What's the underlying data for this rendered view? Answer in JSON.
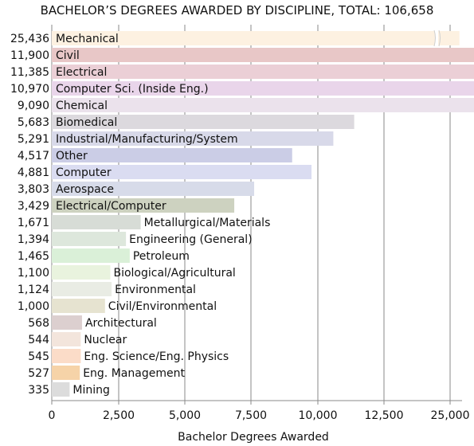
{
  "chart_data": {
    "type": "bar",
    "orientation": "horizontal",
    "title": "BACHELOR’S DEGREES AWARDED BY DISCIPLINE, TOTAL: 106,658",
    "xlabel": "Bachelor Degrees Awarded",
    "xlim": [
      0,
      25000
    ],
    "axis_break": true,
    "xticks": [
      "0",
      "2,500",
      "5,000",
      "7,500",
      "10,000",
      "12,500",
      "25,000"
    ],
    "grid": true,
    "bars": [
      {
        "label": "Mechanical",
        "value": 25436,
        "value_label": "25,436",
        "color": "#fdf1e1"
      },
      {
        "label": "Civil",
        "value": 11900,
        "value_label": "11,900",
        "color": "#e8c7c7"
      },
      {
        "label": "Electrical",
        "value": 11385,
        "value_label": "11,385",
        "color": "#ebcfd6"
      },
      {
        "label": "Computer Sci. (Inside Eng.)",
        "value": 10970,
        "value_label": "10,970",
        "color": "#e9d5ea"
      },
      {
        "label": "Chemical",
        "value": 9090,
        "value_label": "9,090",
        "color": "#ebe2ec"
      },
      {
        "label": "Biomedical",
        "value": 5683,
        "value_label": "5,683",
        "color": "#dcd9de"
      },
      {
        "label": "Industrial/Manufacturing/System",
        "value": 5291,
        "value_label": "5,291",
        "color": "#d8d9e9"
      },
      {
        "label": "Other",
        "value": 4517,
        "value_label": "4,517",
        "color": "#cbcde6"
      },
      {
        "label": "Computer",
        "value": 4881,
        "value_label": "4,881",
        "color": "#dadcf1"
      },
      {
        "label": "Aerospace",
        "value": 3803,
        "value_label": "3,803",
        "color": "#d7dbe9"
      },
      {
        "label": "Electrical/Computer",
        "value": 3429,
        "value_label": "3,429",
        "color": "#cdd2c0"
      },
      {
        "label": "Metallurgical/Materials",
        "value": 1671,
        "value_label": "1,671",
        "color": "#d7dcd6"
      },
      {
        "label": "Engineering (General)",
        "value": 1394,
        "value_label": "1,394",
        "color": "#dde7dc"
      },
      {
        "label": "Petroleum",
        "value": 1465,
        "value_label": "1,465",
        "color": "#daf0d8"
      },
      {
        "label": "Biological/Agricultural",
        "value": 1100,
        "value_label": "1,100",
        "color": "#e9f3de"
      },
      {
        "label": "Environmental",
        "value": 1124,
        "value_label": "1,124",
        "color": "#e9ece4"
      },
      {
        "label": "Civil/Environmental",
        "value": 1000,
        "value_label": "1,000",
        "color": "#e6e3d0"
      },
      {
        "label": "Architectural",
        "value": 568,
        "value_label": "568",
        "color": "#dccfcf"
      },
      {
        "label": "Nuclear",
        "value": 544,
        "value_label": "544",
        "color": "#f3e5dc"
      },
      {
        "label": "Eng. Science/Eng. Physics",
        "value": 545,
        "value_label": "545",
        "color": "#fbdcc8"
      },
      {
        "label": "Eng. Management",
        "value": 527,
        "value_label": "527",
        "color": "#f6d3a8"
      },
      {
        "label": "Mining",
        "value": 335,
        "value_label": "335",
        "color": "#dcdcdc"
      }
    ]
  }
}
